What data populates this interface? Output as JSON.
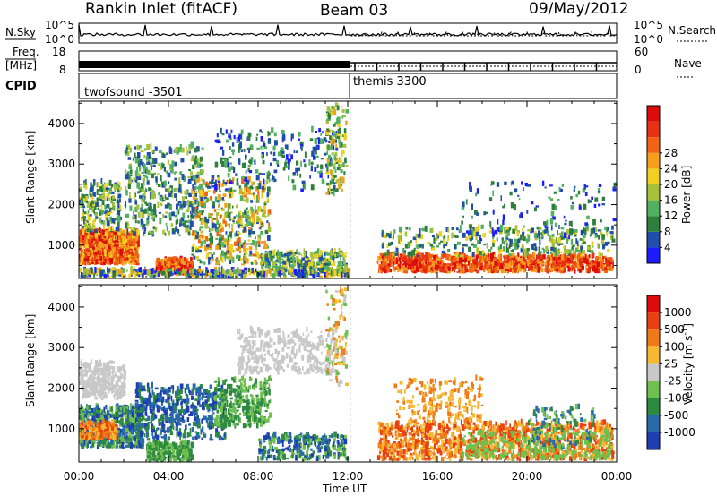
{
  "header": {
    "title": "Rankin Inlet (fitACF)",
    "beam": "Beam 03",
    "date": "09/May/2012"
  },
  "status_panels": {
    "nsky": {
      "label": "N.Sky",
      "ticks": [
        "10^5",
        "10^0"
      ],
      "right_label": "N.Search",
      "right_ticks": [
        "10^5",
        "10^0"
      ]
    },
    "freq": {
      "label_line1": "Freq.",
      "label_line2": "[MHz]",
      "ticks": [
        "18",
        "8"
      ],
      "right_label": "Nave",
      "right_ticks": [
        "60",
        "0"
      ]
    },
    "cpid": {
      "label": "CPID",
      "programs": [
        {
          "name": "twofsound",
          "id": "-3501",
          "start": 0.0,
          "end": 12.0
        },
        {
          "name": "themis",
          "id": "3300",
          "start": 12.0,
          "end": 24.0
        }
      ]
    }
  },
  "chart_data": [
    {
      "type": "heatmap",
      "panel": "power",
      "ylabel": "Slant Range [km]",
      "y_ticks": [
        1000,
        2000,
        3000,
        4000
      ],
      "ylim": [
        180,
        4550
      ],
      "xlabel": "Time UT",
      "x_ticks": [
        "00:00",
        "04:00",
        "08:00",
        "12:00",
        "16:00",
        "20:00",
        "00:00"
      ],
      "xlim": [
        0,
        24
      ],
      "colorbar": {
        "label": "Power [dB]",
        "ticks": [
          4,
          8,
          12,
          16,
          20,
          24,
          28
        ],
        "colors": [
          "#1c1cff",
          "#1f4fa8",
          "#2e7f3c",
          "#52b060",
          "#a7c238",
          "#f0d020",
          "#f5a01c",
          "#f06414",
          "#e83214",
          "#dc0c0c"
        ]
      }
    },
    {
      "type": "heatmap",
      "panel": "velocity",
      "ylabel": "Slant Range [km]",
      "y_ticks": [
        1000,
        2000,
        3000,
        4000
      ],
      "ylim": [
        180,
        4550
      ],
      "xlabel": "Time UT",
      "x_ticks": [
        "00:00",
        "04:00",
        "08:00",
        "12:00",
        "16:00",
        "20:00",
        "00:00"
      ],
      "xlim": [
        0,
        24
      ],
      "colorbar": {
        "label": "Velocity [m s^-1]",
        "ticks": [
          "1000",
          "500",
          "100",
          "25",
          "-25",
          "-100",
          "-500",
          "-1000"
        ],
        "colors": [
          "#1e3fb0",
          "#2a6aaa",
          "#2e8a40",
          "#70c050",
          "#c8c8c8",
          "#f5b830",
          "#f07a18",
          "#e84010",
          "#dc0c0c"
        ]
      }
    }
  ]
}
